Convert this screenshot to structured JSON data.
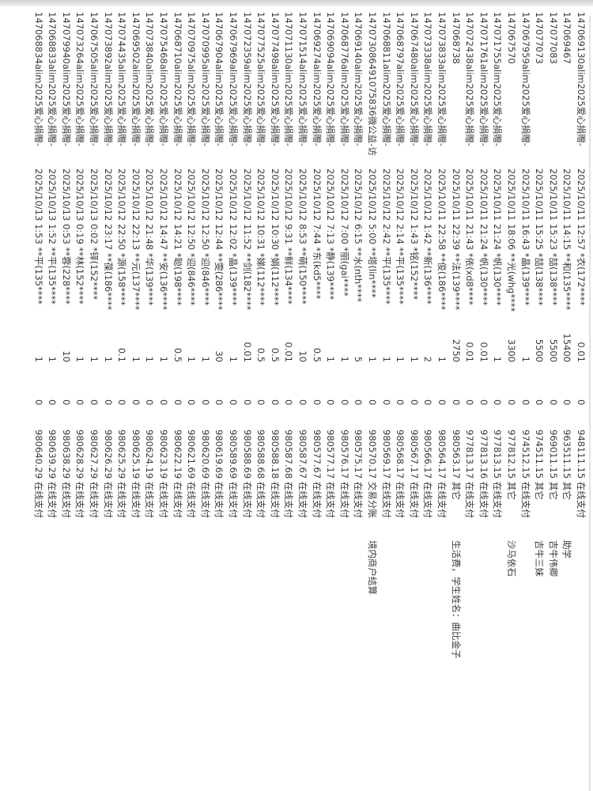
{
  "rows": [
    {
      "id": "147069130alim2025爱心捐赠-",
      "time": "2025/10/11 12:57 *衣(172****",
      "amount": "0.01",
      "fee": "0",
      "balance": "948111.15 在线支付",
      "note": ""
    },
    {
      "id": "147069467",
      "time": "2025/10/11 14:15 **和(135****",
      "amount": "15400",
      "fee": "0",
      "balance": "963511.15 其它",
      "note": "助学"
    },
    {
      "id": "147077083",
      "time": "2025/10/11 15:23 *喆(138****",
      "amount": "5500",
      "fee": "0",
      "balance": "969011.15 其它",
      "note": "吉牛伟卿"
    },
    {
      "id": "147077073",
      "time": "2025/10/11 15:25 *喆(138****",
      "amount": "5500",
      "fee": "0",
      "balance": "974511.15 其它",
      "note": "吉牛三妹"
    },
    {
      "id": "147067959alim2025爱心捐赠-",
      "time": "2025/10/11 16:43 *晶(139****",
      "amount": "1",
      "fee": "0",
      "balance": "974512.15 在线支付",
      "note": ""
    },
    {
      "id": "147067570",
      "time": "2025/10/11 18:06 **光(whg****",
      "amount": "3300",
      "fee": "0",
      "balance": "977812.15 其它",
      "note": "沙马依石"
    },
    {
      "id": "147071755alim2025爱心捐赠-",
      "time": "2025/10/11 21:24 *帆(130****",
      "amount": "1",
      "fee": "0",
      "balance": "977813.15 在线支付",
      "note": ""
    },
    {
      "id": "147071761alim2025爱心捐赠-",
      "time": "2025/10/11 21:24 *帆(130****",
      "amount": "0.01",
      "fee": "0",
      "balance": "977813.16 在线支付",
      "note": ""
    },
    {
      "id": "147072438alim2025爱心捐赠-",
      "time": "2025/10/11 21:43 *依(xd8****",
      "amount": "0.01",
      "fee": "0",
      "balance": "977813.17 在线支付",
      "note": ""
    },
    {
      "id": "147068738",
      "time": "2025/10/11 22:39 **法(139****",
      "amount": "2750",
      "fee": "0",
      "balance": "980563.17 其它",
      "note": "生活费，学生姓名：曲比金子"
    },
    {
      "id": "147073833alim2025爱心捐赠-",
      "time": "2025/10/11 22:58 **俊(186****",
      "amount": "1",
      "fee": "0",
      "balance": "980564.17 在线支付",
      "note": ""
    },
    {
      "id": "147073338alim2025爱心捐赠-",
      "time": "2025/10/12 1:42 **新(136****",
      "amount": "2",
      "fee": "0",
      "balance": "980566.17 在线支付",
      "note": ""
    },
    {
      "id": "147067480alim2025爱心捐赠-",
      "time": "2025/10/12 1:43 *铭(152****",
      "amount": "1",
      "fee": "0",
      "balance": "980567.17 在线支付",
      "note": ""
    },
    {
      "id": "147068797alim2025爱心捐赠-",
      "time": "2025/10/12 2:14 **平(135****",
      "amount": "1",
      "fee": "0",
      "balance": "980568.17 在线支付",
      "note": ""
    },
    {
      "id": "147068811alim2025爱心捐赠-",
      "time": "2025/10/12 2:42 **平(135****",
      "amount": "1",
      "fee": "0",
      "balance": "980569.17 在线支付",
      "note": ""
    },
    {
      "id": "147073086491075836微公益-访",
      "time": "2025/10/12 5:00 **塔(lin****",
      "amount": "1",
      "fee": "0",
      "balance": "980570.17 交易分账",
      "note": "境内商户结算"
    },
    {
      "id": "147069140alim2025爱心捐赠-",
      "time": "2025/10/12 6:15 **水(nth****",
      "amount": "5",
      "fee": "0",
      "balance": "980575.17 在线支付",
      "note": ""
    },
    {
      "id": "147068776alim2025爱心捐赠-",
      "time": "2025/10/12 7:00 *丽(gai****",
      "amount": "1",
      "fee": "0",
      "balance": "980576.17 在线支付",
      "note": ""
    },
    {
      "id": "147069094alim2025爱心捐赠-",
      "time": "2025/10/12 7:13 *静(139****",
      "amount": "1",
      "fee": "0",
      "balance": "980577.17 在线支付",
      "note": ""
    },
    {
      "id": "147069274alim2025爱心捐赠-",
      "time": "2025/10/12 7:44 *东(kd5****",
      "amount": "0.5",
      "fee": "0",
      "balance": "980577.67 在线支付",
      "note": ""
    },
    {
      "id": "147071514alim2025爱心捐赠-",
      "time": "2025/10/12 8:53 **萌(150****",
      "amount": "10",
      "fee": "0",
      "balance": "980587.67 在线支付",
      "note": ""
    },
    {
      "id": "147071130alim2025爱心捐赠-",
      "time": "2025/10/12 9:31 **鲜(134****",
      "amount": "0.01",
      "fee": "0",
      "balance": "980587.68 在线支付",
      "note": ""
    },
    {
      "id": "147077498alim2025爱心捐赠-",
      "time": "2025/10/12 10:30 *娟(112****",
      "amount": "0.5",
      "fee": "0",
      "balance": "980588.18 在线支付",
      "note": ""
    },
    {
      "id": "147077525alim2025爱心捐赠-",
      "time": "2025/10/12 10:31 *娣(112****",
      "amount": "0.5",
      "fee": "0",
      "balance": "980588.68 在线支付",
      "note": ""
    },
    {
      "id": "147072359alim2025爱心捐赠-",
      "time": "2025/10/12 11:52 **剑(182****",
      "amount": "0.01",
      "fee": "0",
      "balance": "980588.69 在线支付",
      "note": ""
    },
    {
      "id": "147067969alim2025爱心捐赠-",
      "time": "2025/10/12 12:02 *晶(139****",
      "amount": "1",
      "fee": "0",
      "balance": "980589.69 在线支付",
      "note": ""
    },
    {
      "id": "147067904alim2025爱心捐赠-",
      "time": "2025/10/12 12:44 **雯(286****",
      "amount": "30",
      "fee": "0",
      "balance": "980619.69 在线支付",
      "note": ""
    },
    {
      "id": "147070995alim2025爱心捐赠-",
      "time": "2025/10/12 12:50 *迎(846****",
      "amount": "1",
      "fee": "0",
      "balance": "980620.69 在线支付",
      "note": ""
    },
    {
      "id": "147070975alim2025爱心捐赠-",
      "time": "2025/10/12 12:50 *迎(846****",
      "amount": "1",
      "fee": "0",
      "balance": "980621.69 在线支付",
      "note": ""
    },
    {
      "id": "147068710alim2025爱心捐赠-",
      "time": "2025/10/12 14:21 *聪(198****",
      "amount": "0.5",
      "fee": "0",
      "balance": "980622.19 在线支付",
      "note": ""
    },
    {
      "id": "147075468alim2025爱心捐赠-",
      "time": "2025/10/12 14:47 **安(136****",
      "amount": "1",
      "fee": "0",
      "balance": "980623.19 在线支付",
      "note": ""
    },
    {
      "id": "147073840alim2025爱心捐赠-",
      "time": "2025/10/12 21:48 *华(139****",
      "amount": "1",
      "fee": "0",
      "balance": "980624.19 在线支付",
      "note": ""
    },
    {
      "id": "147069502alim2025爱心捐赠-",
      "time": "2025/10/12 22:13 **元(137****",
      "amount": "1",
      "fee": "0",
      "balance": "980625.19 在线支付",
      "note": ""
    },
    {
      "id": "147074435alim2025爱心捐赠-",
      "time": "2025/10/12 22:50 *源(158****",
      "amount": "0.1",
      "fee": "0",
      "balance": "980625.29 在线支付",
      "note": ""
    },
    {
      "id": "147073892alim2025爱心捐赠-",
      "time": "2025/10/12 23:17 **葆(186****",
      "amount": "1",
      "fee": "0",
      "balance": "980626.29 在线支付",
      "note": ""
    },
    {
      "id": "147067505alim2025爱心捐赠-",
      "time": "2025/10/13 0:02 *铎(152****",
      "amount": "1",
      "fee": "0",
      "balance": "980627.29 在线支付",
      "note": ""
    },
    {
      "id": "147073264alim2025爱心捐赠-",
      "time": "2025/10/13 0:19 **林(152****",
      "amount": "1",
      "fee": "0",
      "balance": "980628.29 在线支付",
      "note": ""
    },
    {
      "id": "147079940alim2025爱心捐赠-",
      "time": "2025/10/13 0:53 **蓉(228****",
      "amount": "10",
      "fee": "0",
      "balance": "980638.29 在线支付",
      "note": ""
    },
    {
      "id": "147068833alim2025爱心捐赠-",
      "time": "2025/10/13 1:52 **平(135****",
      "amount": "1",
      "fee": "0",
      "balance": "980639.29 在线支付",
      "note": ""
    },
    {
      "id": "147068834alim2025爱心捐赠-",
      "time": "2025/10/13 1:53 **平(135****",
      "amount": "1",
      "fee": "0",
      "balance": "980640.29 在线支付",
      "note": ""
    }
  ]
}
